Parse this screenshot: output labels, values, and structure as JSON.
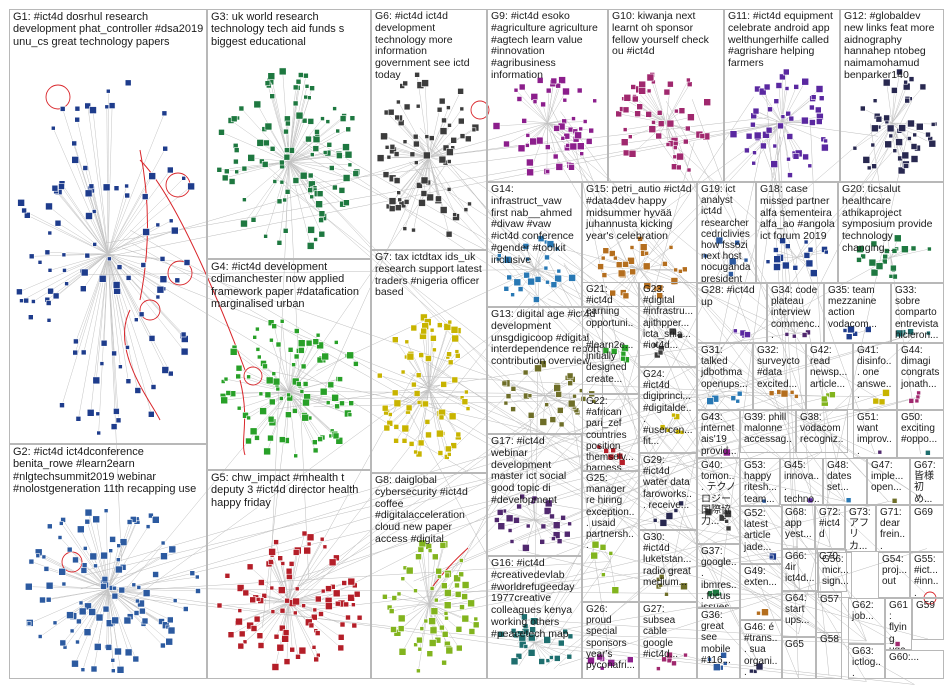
{
  "groups": [
    {
      "id": "G1",
      "text": "G1: #ict4d dosrhul research development phat_controller #dsa2019 unu_cs great technology papers"
    },
    {
      "id": "G2",
      "text": "G2: #ict4d ict4dconference benita_rowe #learn2earn #nlgtechsummit2019 webinar #nolostgeneration 11th recapping use"
    },
    {
      "id": "G3",
      "text": "G3: uk world research technology tech aid funds s biggest educational"
    },
    {
      "id": "G4",
      "text": "G4: #ict4d development cdimanchester now applied framework paper #datafication marginalised urban"
    },
    {
      "id": "G5",
      "text": "G5: chw_impact #mhealth t deputy 3 #ict4d director health happy friday"
    },
    {
      "id": "G6",
      "text": "G6: #ict4d ict4d development technology more information government see ictd today"
    },
    {
      "id": "G7",
      "text": "G7: tax ictdtax ids_uk research support latest traders #nigeria officer based"
    },
    {
      "id": "G8",
      "text": "G8: daiglobal cybersecurity #ict4d coffee #digitalacceleration cloud new paper access #digital"
    },
    {
      "id": "G9",
      "text": "G9: #ict4d esoko #agriculture agriculture #agtech learn value #innovation #agribusiness information"
    },
    {
      "id": "G10",
      "text": "G10: kiwanja next learnt oh sponsor fellow yourself check ou #ict4d"
    },
    {
      "id": "G11",
      "text": "G11: #ict4d equipment celebrate android app welthungerhilfe called #agrishare helping farmers"
    },
    {
      "id": "G12",
      "text": "G12: #globaldev new links feat more aidnography hannahep ntobeg naimamohamud benparker140"
    },
    {
      "id": "G13",
      "text": "G13: digital age #ict4d development unsgdigicoop #digital interdependence report contribution overview"
    },
    {
      "id": "G14",
      "text": "G14: infrastruct_vaw first nab__ahmed #divaw #vaw #ict4d conference #gender #toolkit inclusive"
    },
    {
      "id": "G15",
      "text": "G15: petri_autio #ict4d #data4dev happy midsummer hyvää juhannusta kicking year's celebration"
    },
    {
      "id": "G16",
      "text": "G16: #ict4d #creativedevlab #worldrefugeeday 1977creative colleagues kenya working others #peacetech map"
    },
    {
      "id": "G17",
      "text": "G17: #ict4d webinar development master ict social good topic di #development"
    },
    {
      "id": "G18",
      "text": "G18: case missed partner alfa sementeira alfa_ao #angola ict forum 2019"
    },
    {
      "id": "G19",
      "text": "G19: ict analyst ict4d researcher cedriclivieshow fssozi next host nocuganda president"
    },
    {
      "id": "G20",
      "text": "G20: ticsalut healthcare athikaproject symposium provide technology changing..."
    },
    {
      "id": "G21",
      "text": "G21: #ict4d earning opportuni... #learn2e... initially designed create..."
    },
    {
      "id": "G22",
      "text": "G22: #african pari_zef countries position themselv... harness..."
    },
    {
      "id": "G23",
      "text": "G23: #digital #infrastru... ajithpper... icta_srila... #ict4d..."
    },
    {
      "id": "G24",
      "text": "G24: #ict4d digiprinci... #digitalde... #usercen... fit..."
    },
    {
      "id": "G25",
      "text": "G25: manager re hiring exception... usaid partnersh..."
    },
    {
      "id": "G26",
      "text": "G26: proud special sponsors year's pyconafri..."
    },
    {
      "id": "G27",
      "text": "G27: subsea cable google #ict4d..."
    },
    {
      "id": "G28",
      "text": "G28: #ict4d up"
    },
    {
      "id": "G29",
      "text": "G29: #ict4d water data faroworks... receive..."
    },
    {
      "id": "G30",
      "text": "G30: #ict4d luketstan... radio great medium..."
    },
    {
      "id": "G31",
      "text": "G31: talked jdbothma openups..."
    },
    {
      "id": "G32",
      "text": "G32: surveycto #data excited..."
    },
    {
      "id": "G33",
      "text": "G33: sobre comparto entrevista hicieron..."
    },
    {
      "id": "G34",
      "text": "G34: code plateau interview commenc..."
    },
    {
      "id": "G35",
      "text": "G35: team mezzanine action vodacom..."
    },
    {
      "id": "G36",
      "text": "G36: great see mobile #116..."
    },
    {
      "id": "G37",
      "text": "G37: google... ibmres... focus issues..."
    },
    {
      "id": "G38",
      "text": "G38: vodacom recogniz..."
    },
    {
      "id": "G39",
      "text": "G39: phill malonne accessag..."
    },
    {
      "id": "G40",
      "text": "G40: tomon... テクノロジー 国際協力..."
    },
    {
      "id": "G41",
      "text": "G41: disinfo... one answe..."
    },
    {
      "id": "G42",
      "text": "G42: read newsp... article..."
    },
    {
      "id": "G43",
      "text": "G43: internet ais'19 provid..."
    },
    {
      "id": "G44",
      "text": "G44: dimagi congrats jonath..."
    },
    {
      "id": "G45",
      "text": "G45: innova... techno..."
    },
    {
      "id": "G46",
      "text": "G46: é #trans... sua organi..."
    },
    {
      "id": "G47",
      "text": "G47: imple... open..."
    },
    {
      "id": "G48",
      "text": "G48: dates set..."
    },
    {
      "id": "G49",
      "text": "G49: exten..."
    },
    {
      "id": "G50",
      "text": "G50: exciting #oppo..."
    },
    {
      "id": "G51",
      "text": "G51: want improv..."
    },
    {
      "id": "G52",
      "text": "G52: latest article jade..."
    },
    {
      "id": "G53",
      "text": "G53: happy ritesh... team..."
    },
    {
      "id": "G54",
      "text": "G54: proj... out"
    },
    {
      "id": "G55",
      "text": "G55: #ict... #inn..."
    },
    {
      "id": "G56",
      "text": "G56: micr... sign..."
    },
    {
      "id": "G57",
      "text": "G57"
    },
    {
      "id": "G58",
      "text": "G58"
    },
    {
      "id": "G59",
      "text": "G59"
    },
    {
      "id": "G60",
      "text": "G60:..."
    },
    {
      "id": "G61",
      "text": "G61: flying uga..."
    },
    {
      "id": "G62",
      "text": "G62: job..."
    },
    {
      "id": "G63",
      "text": "G63: ictlog..."
    },
    {
      "id": "G64",
      "text": "G64: start ups..."
    },
    {
      "id": "G65",
      "text": "G65"
    },
    {
      "id": "G66",
      "text": "G66: 4ir ict4d..."
    },
    {
      "id": "G67",
      "text": "G67: 皆様 初め..."
    },
    {
      "id": "G68",
      "text": "G68: app yest..."
    },
    {
      "id": "G69",
      "text": "G69"
    },
    {
      "id": "G70",
      "text": "G70"
    },
    {
      "id": "G71",
      "text": "G71: dear frein..."
    },
    {
      "id": "G72",
      "text": "G72: #ict4d"
    },
    {
      "id": "G73",
      "text": "G73: アフリカ..."
    }
  ],
  "colors": {
    "G1": "#1e3c8c",
    "G2": "#2c5aa0",
    "G3": "#1e7840",
    "G4": "#28a028",
    "G5": "#b41e28",
    "G6": "#3c3c3c",
    "G7": "#c8b400",
    "G8": "#82b41e",
    "G9": "#8c1e8c",
    "G10": "#a0286e",
    "G11": "#5a28a0",
    "G12": "#282850",
    "G13": "#6e6e28",
    "G14": "#2878b4",
    "G15": "#b46e1e",
    "G16": "#1e6e6e",
    "G17": "#50286e",
    "edge": "#bdbdbd",
    "edge_red": "#d9262b"
  }
}
